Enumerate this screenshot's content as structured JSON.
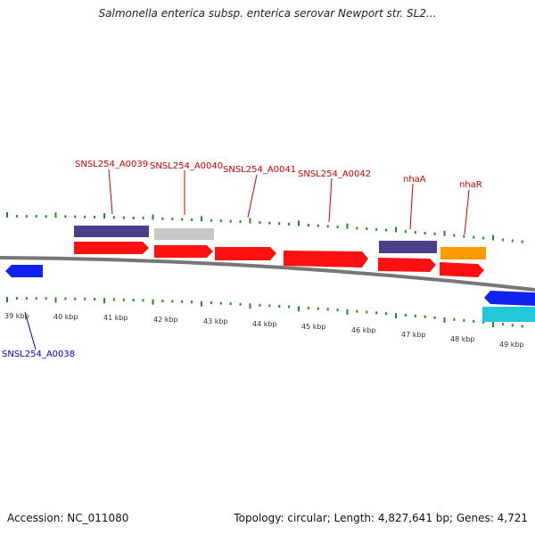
{
  "title": "Salmonella enterica subsp. enterica serovar Newport str. SL2...",
  "footer": {
    "accession_text": "Accession: NC_011080",
    "topology_text": "Topology: circular; Length: 4,827,641 bp; Genes: 4,721"
  },
  "colors": {
    "backbone": "#777777",
    "tick": "#228b22",
    "scale_text": "#333333",
    "label_red": "#cc0000",
    "label_blue": "#0000cc",
    "gene_red": "#ff1111",
    "gene_purple": "#4a3f88",
    "gene_gray": "#c8c8c8",
    "gene_orange": "#ff9900",
    "gene_blue": "#1122ee",
    "gene_cyan": "#22c8d8"
  },
  "scale": {
    "unit": "kbp",
    "labels": [
      "39 kbp",
      "40 kbp",
      "41 kbp",
      "42 kbp",
      "43 kbp",
      "44 kbp",
      "45 kbp",
      "46 kbp",
      "47 kbp",
      "48 kbp",
      "49 kbp"
    ]
  },
  "gene_labels": [
    {
      "text": "SNSL254_A0039",
      "color": "red"
    },
    {
      "text": "SNSL254_A0040",
      "color": "red"
    },
    {
      "text": "SNSL254_A0041",
      "color": "red"
    },
    {
      "text": "SNSL254_A0042",
      "color": "red"
    },
    {
      "text": "nhaA",
      "color": "red"
    },
    {
      "text": "nhaR",
      "color": "red"
    },
    {
      "text": "SNSL254_A0038",
      "color": "blue"
    }
  ]
}
